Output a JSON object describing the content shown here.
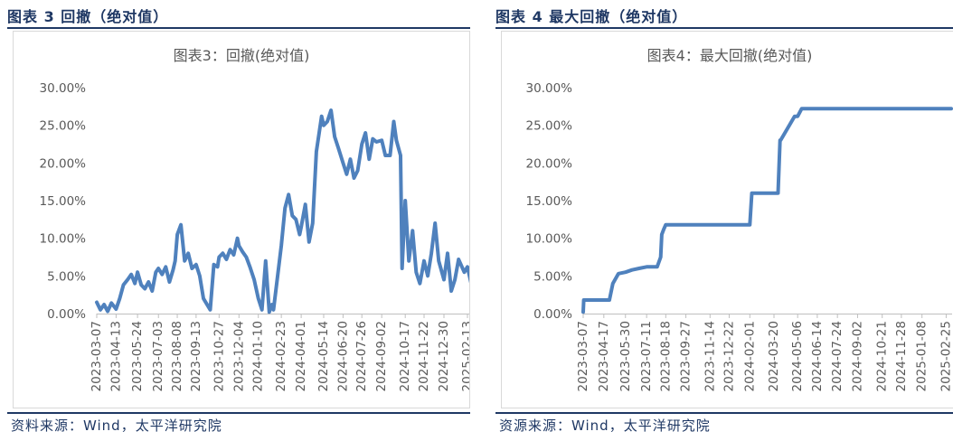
{
  "left_panel": {
    "caption": "图表 3 回撤（绝对值）",
    "source": "资料来源：Wind，太平洋研究院"
  },
  "right_panel": {
    "caption": "图表 4 最大回撤（绝对值）",
    "source": "资源来源：Wind，太平洋研究院"
  },
  "chart_data": [
    {
      "type": "line",
      "title": "图表3：回撤(绝对值)",
      "ylim": [
        0,
        0.3
      ],
      "y_ticks": [
        0,
        0.05,
        0.1,
        0.15,
        0.2,
        0.25,
        0.3
      ],
      "y_tick_labels": [
        "0.00%",
        "5.00%",
        "10.00%",
        "15.00%",
        "20.00%",
        "25.00%",
        "30.00%"
      ],
      "x_tick_labels": [
        "2023-03-07",
        "2023-04-13",
        "2023-05-24",
        "2023-07-03",
        "2023-08-08",
        "2023-09-13",
        "2023-10-27",
        "2023-12-04",
        "2024-01-10",
        "2024-02-23",
        "2024-04-01",
        "2024-05-14",
        "2024-06-20",
        "2024-07-26",
        "2024-09-02",
        "2024-10-17",
        "2024-11-22",
        "2024-12-30",
        "2025-02-13"
      ],
      "color": "#4f81bd",
      "series": [
        {
          "x": [
            "2023-03-07",
            "2023-03-14",
            "2023-03-21",
            "2023-03-28",
            "2023-04-04",
            "2023-04-13",
            "2023-04-20",
            "2023-04-27",
            "2023-05-05",
            "2023-05-12",
            "2023-05-19",
            "2023-05-24",
            "2023-05-31",
            "2023-06-07",
            "2023-06-14",
            "2023-06-21",
            "2023-06-28",
            "2023-07-03",
            "2023-07-10",
            "2023-07-17",
            "2023-07-24",
            "2023-07-31",
            "2023-08-04",
            "2023-08-08",
            "2023-08-15",
            "2023-08-22",
            "2023-08-29",
            "2023-09-05",
            "2023-09-13",
            "2023-09-20",
            "2023-09-27",
            "2023-10-10",
            "2023-10-17",
            "2023-10-24",
            "2023-10-27",
            "2023-11-03",
            "2023-11-10",
            "2023-11-17",
            "2023-11-24",
            "2023-12-01",
            "2023-12-04",
            "2023-12-11",
            "2023-12-18",
            "2023-12-25",
            "2024-01-02",
            "2024-01-10",
            "2024-01-17",
            "2024-01-24",
            "2024-01-31",
            "2024-02-05",
            "2024-02-08",
            "2024-02-23",
            "2024-03-01",
            "2024-03-08",
            "2024-03-15",
            "2024-03-22",
            "2024-03-29",
            "2024-04-01",
            "2024-04-09",
            "2024-04-16",
            "2024-04-23",
            "2024-04-30",
            "2024-05-10",
            "2024-05-14",
            "2024-05-21",
            "2024-05-28",
            "2024-06-04",
            "2024-06-11",
            "2024-06-20",
            "2024-06-27",
            "2024-07-04",
            "2024-07-11",
            "2024-07-18",
            "2024-07-26",
            "2024-08-02",
            "2024-08-09",
            "2024-08-16",
            "2024-08-23",
            "2024-09-02",
            "2024-09-09",
            "2024-09-18",
            "2024-09-25",
            "2024-09-30",
            "2024-10-08",
            "2024-10-11",
            "2024-10-17",
            "2024-10-24",
            "2024-10-31",
            "2024-11-07",
            "2024-11-14",
            "2024-11-22",
            "2024-11-29",
            "2024-12-06",
            "2024-12-13",
            "2024-12-20",
            "2024-12-30",
            "2025-01-06",
            "2025-01-13",
            "2025-01-20",
            "2025-01-27",
            "2025-02-07",
            "2025-02-13",
            "2025-02-20",
            "2025-02-27",
            "2025-03-04"
          ],
          "y": [
            0.015,
            0.005,
            0.012,
            0.003,
            0.014,
            0.006,
            0.02,
            0.038,
            0.045,
            0.052,
            0.04,
            0.055,
            0.038,
            0.033,
            0.042,
            0.03,
            0.055,
            0.06,
            0.052,
            0.062,
            0.042,
            0.058,
            0.07,
            0.105,
            0.118,
            0.07,
            0.08,
            0.06,
            0.065,
            0.05,
            0.02,
            0.005,
            0.065,
            0.062,
            0.075,
            0.08,
            0.072,
            0.085,
            0.078,
            0.1,
            0.09,
            0.082,
            0.075,
            0.062,
            0.045,
            0.02,
            0.005,
            0.07,
            0.002,
            0.012,
            0.005,
            0.09,
            0.14,
            0.158,
            0.13,
            0.125,
            0.105,
            0.115,
            0.145,
            0.095,
            0.12,
            0.215,
            0.262,
            0.25,
            0.255,
            0.27,
            0.235,
            0.22,
            0.2,
            0.185,
            0.205,
            0.18,
            0.19,
            0.225,
            0.24,
            0.205,
            0.232,
            0.228,
            0.23,
            0.21,
            0.21,
            0.255,
            0.23,
            0.21,
            0.06,
            0.15,
            0.07,
            0.11,
            0.055,
            0.04,
            0.07,
            0.05,
            0.08,
            0.12,
            0.07,
            0.045,
            0.08,
            0.03,
            0.045,
            0.072,
            0.055,
            0.062,
            0.04,
            0.025,
            0.002
          ]
        }
      ]
    },
    {
      "type": "line",
      "title": "图表4：最大回撤(绝对值)",
      "ylim": [
        0,
        0.3
      ],
      "y_ticks": [
        0,
        0.05,
        0.1,
        0.15,
        0.2,
        0.25,
        0.3
      ],
      "y_tick_labels": [
        "0.00%",
        "5.00%",
        "10.00%",
        "15.00%",
        "20.00%",
        "25.00%",
        "30.00%"
      ],
      "x_tick_labels": [
        "2023-03-07",
        "2023-04-17",
        "2023-05-30",
        "2023-07-11",
        "2023-08-18",
        "2023-09-27",
        "2023-11-14",
        "2023-12-22",
        "2024-02-01",
        "2024-03-20",
        "2024-05-06",
        "2024-06-14",
        "2024-07-24",
        "2024-09-02",
        "2024-10-21",
        "2024-11-28",
        "2025-01-08",
        "2025-02-25"
      ],
      "color": "#4f81bd",
      "series": [
        {
          "x": [
            "2023-03-07",
            "2023-03-08",
            "2023-04-17",
            "2023-04-28",
            "2023-05-05",
            "2023-05-16",
            "2023-05-30",
            "2023-06-12",
            "2023-06-26",
            "2023-07-11",
            "2023-08-01",
            "2023-08-08",
            "2023-08-10",
            "2023-08-14",
            "2023-08-18",
            "2023-09-27",
            "2023-11-14",
            "2023-12-22",
            "2024-02-01",
            "2024-02-05",
            "2024-03-20",
            "2024-03-28",
            "2024-04-01",
            "2024-04-02",
            "2024-04-30",
            "2024-05-06",
            "2024-05-14",
            "2024-06-14",
            "2024-07-24",
            "2024-09-02",
            "2024-10-21",
            "2024-11-28",
            "2025-01-08",
            "2025-02-25",
            "2025-03-07"
          ],
          "y": [
            0.002,
            0.018,
            0.018,
            0.018,
            0.04,
            0.053,
            0.055,
            0.058,
            0.06,
            0.062,
            0.062,
            0.075,
            0.105,
            0.112,
            0.118,
            0.118,
            0.118,
            0.118,
            0.118,
            0.16,
            0.16,
            0.16,
            0.23,
            0.23,
            0.262,
            0.262,
            0.272,
            0.272,
            0.272,
            0.272,
            0.272,
            0.272,
            0.272,
            0.272,
            0.272
          ]
        }
      ]
    }
  ]
}
